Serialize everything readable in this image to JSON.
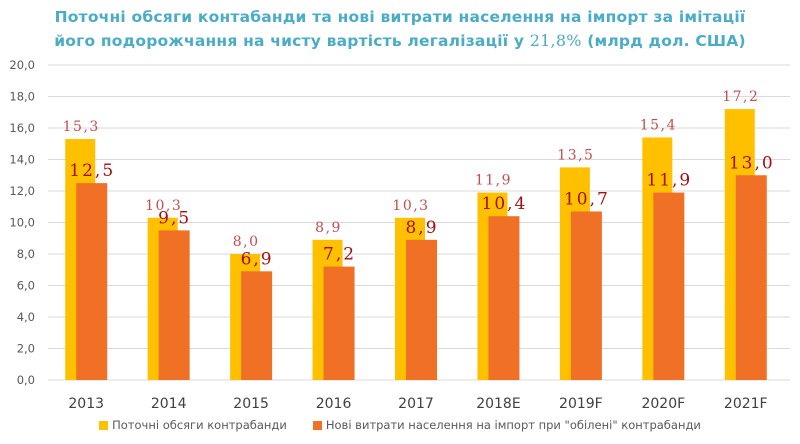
{
  "title": {
    "line1": "Поточні обсяги контабанди та нові витрати населення на імпорт за імітації",
    "line2_prefix": "його подорожчання на чисту вартість легалізації у ",
    "line2_number": "21,8%",
    "line2_suffix": " (млрд дол. США)"
  },
  "colors": {
    "series1": "#ffc000",
    "series2": "#f07126",
    "title": "#4bacc6",
    "label1": "#c0504d",
    "label2": "#a50e0e",
    "grid": "#d9d9d9"
  },
  "chart_data": {
    "type": "bar",
    "title": "Поточні обсяги контабанди та нові витрати населення на імпорт за імітації його подорожчання на чисту вартість легалізації у 21,8% (млрд дол. США)",
    "xlabel": "",
    "ylabel": "",
    "categories": [
      "2013",
      "2014",
      "2015",
      "2016",
      "2017",
      "2018E",
      "2019F",
      "2020F",
      "2021F"
    ],
    "series": [
      {
        "name": "Поточні обсяги контрабанди",
        "values": [
          15.3,
          10.3,
          8.0,
          8.9,
          10.3,
          11.9,
          13.5,
          15.4,
          17.2
        ],
        "labels": [
          "15,3",
          "10,3",
          "8,0",
          "8,9",
          "10,3",
          "11,9",
          "13,5",
          "15,4",
          "17,2"
        ]
      },
      {
        "name": "Нові витрати населення на імпорт при \"обілені\" контрабанди",
        "values": [
          12.5,
          9.5,
          6.9,
          7.2,
          8.9,
          10.4,
          10.7,
          11.9,
          13.0
        ],
        "labels": [
          "12,5",
          "9,5",
          "6,9",
          "7,2",
          "8,9",
          "10,4",
          "10,7",
          "11,9",
          "13,0"
        ]
      }
    ],
    "ylim": [
      0,
      20
    ],
    "yticks": [
      0,
      2,
      4,
      6,
      8,
      10,
      12,
      14,
      16,
      18,
      20
    ],
    "ytick_labels": [
      "0,0",
      "2,0",
      "4,0",
      "6,0",
      "8,0",
      "10,0",
      "12,0",
      "14,0",
      "16,0",
      "18,0",
      "20,0"
    ],
    "grid": true,
    "legend_position": "bottom"
  }
}
